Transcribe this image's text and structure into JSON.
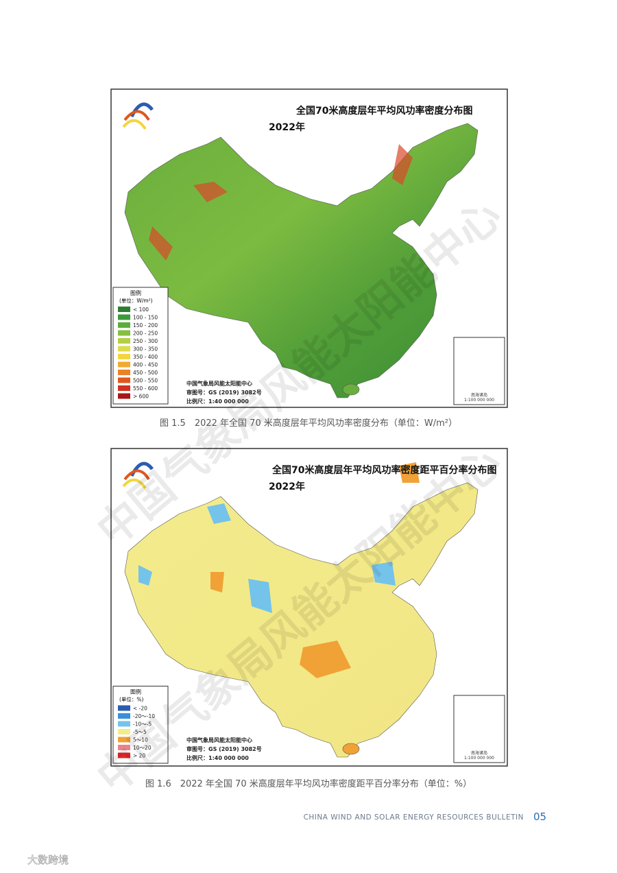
{
  "figures": [
    {
      "title": "全国70米高度层年平均风功率密度分布图",
      "year": "2022年",
      "legend": {
        "title": "图例",
        "unit": "(单位：W/m²)",
        "items": [
          {
            "label": "< 100",
            "color": "#2f7d32"
          },
          {
            "label": "100 - 150",
            "color": "#3d9a3a"
          },
          {
            "label": "150 - 200",
            "color": "#5aad3c"
          },
          {
            "label": "200 - 250",
            "color": "#86bf3e"
          },
          {
            "label": "250 - 300",
            "color": "#b3cf45"
          },
          {
            "label": "300 - 350",
            "color": "#dcdc4c"
          },
          {
            "label": "350 - 400",
            "color": "#f2d63f"
          },
          {
            "label": "400 - 450",
            "color": "#f1aa32"
          },
          {
            "label": "450 - 500",
            "color": "#ea8126"
          },
          {
            "label": "500 - 550",
            "color": "#e0561f"
          },
          {
            "label": "550 - 600",
            "color": "#cf3020"
          },
          {
            "label": "> 600",
            "color": "#a8161a"
          }
        ]
      },
      "credits": [
        "中国气象局风能太阳能中心",
        "审图号：GS (2019) 3082号",
        "比例尺：1:40 000 000"
      ],
      "inset": [
        "南海诸岛",
        "1:100 000 000"
      ],
      "caption": "图 1.5　2022 年全国 70 米高度层年平均风功率密度分布（单位：W/m²）"
    },
    {
      "title": "全国70米高度层年平均风功率密度距平百分率分布图",
      "year": "2022年",
      "legend": {
        "title": "图例",
        "unit": "(单位：%)",
        "items": [
          {
            "label": "< -20",
            "color": "#2a5db0"
          },
          {
            "label": "-20～-10",
            "color": "#3a8fd8"
          },
          {
            "label": "-10～-5",
            "color": "#74c3ea"
          },
          {
            "label": "-5～5",
            "color": "#f3ec8c"
          },
          {
            "label": "5～10",
            "color": "#f0a236"
          },
          {
            "label": "10～20",
            "color": "#e9828a"
          },
          {
            "label": "> 20",
            "color": "#e2282a"
          }
        ]
      },
      "credits": [
        "中国气象局风能太阳能中心",
        "审图号：GS (2019) 3082号",
        "比例尺：1:40 000 000"
      ],
      "inset": [
        "南海诸岛",
        "1:100 000 000"
      ],
      "caption": "图 1.6　2022 年全国 70 米高度层年平均风功率密度距平百分率分布（单位：%）"
    }
  ],
  "footer": {
    "text": "CHINA WIND AND SOLAR ENERGY RESOURCES BULLETIN",
    "page": "05"
  },
  "watermark": "中国气象局风能太阳能中心",
  "logo": "大数跨境"
}
